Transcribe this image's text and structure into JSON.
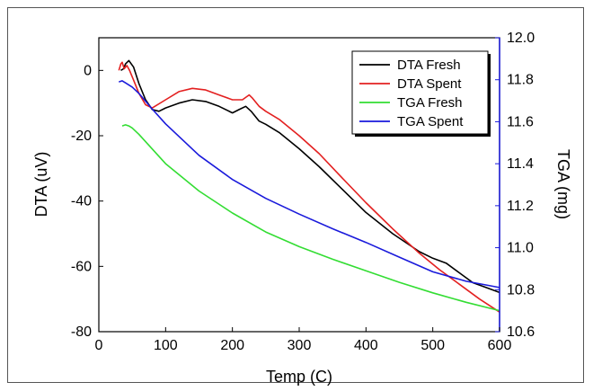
{
  "chart_data": {
    "type": "line",
    "xlabel": "Temp (C)",
    "ylabel_left": "DTA (uV)",
    "ylabel_right": "TGA (mg)",
    "xlim": [
      0,
      600
    ],
    "ylim_left": [
      -80,
      10
    ],
    "ylim_right": [
      10.6,
      12.0
    ],
    "x_ticks": [
      "0",
      "100",
      "200",
      "300",
      "400",
      "500",
      "600"
    ],
    "y_left_ticks": [
      "0",
      "-20",
      "-40",
      "-60",
      "-80"
    ],
    "y_right_ticks": [
      "12.0",
      "11.8",
      "11.6",
      "11.4",
      "11.2",
      "11.0",
      "10.8",
      "10.6"
    ],
    "legend_position": "top-right",
    "series": [
      {
        "name": "DTA Fresh",
        "axis": "left",
        "color": "#000000",
        "x": [
          33,
          37,
          40,
          45,
          52,
          60,
          70,
          80,
          90,
          100,
          120,
          140,
          160,
          180,
          200,
          210,
          220,
          228,
          240,
          250,
          270,
          300,
          330,
          360,
          400,
          440,
          480,
          500,
          520,
          540,
          560,
          580,
          600
        ],
        "y": [
          0,
          0.5,
          2,
          3,
          1,
          -4,
          -9,
          -12,
          -12.5,
          -11.5,
          -10,
          -9,
          -9.5,
          -11,
          -13,
          -12,
          -11,
          -12.5,
          -15.5,
          -16.5,
          -19,
          -24,
          -29.5,
          -35.5,
          -43.5,
          -50,
          -55.5,
          -57.5,
          -59,
          -62,
          -65,
          -66.5,
          -68
        ]
      },
      {
        "name": "DTA Spent",
        "axis": "left",
        "color": "#e32020",
        "x": [
          30,
          33,
          35,
          38,
          42,
          46,
          52,
          60,
          70,
          80,
          100,
          120,
          140,
          160,
          180,
          200,
          215,
          225,
          230,
          240,
          250,
          270,
          300,
          330,
          360,
          400,
          440,
          480,
          510,
          540,
          570,
          600
        ],
        "y": [
          0,
          2,
          2.5,
          0.5,
          1.5,
          0,
          -3,
          -7,
          -10.5,
          -11.5,
          -9,
          -6.5,
          -5.5,
          -6,
          -7.5,
          -9,
          -9,
          -7.5,
          -8.5,
          -11,
          -12.5,
          -15,
          -20,
          -25.5,
          -32,
          -40.5,
          -48.5,
          -56,
          -61,
          -65.5,
          -70,
          -74
        ]
      },
      {
        "name": "TGA Fresh",
        "axis": "right",
        "color": "#33dd33",
        "x": [
          35,
          40,
          45,
          50,
          60,
          80,
          100,
          150,
          200,
          250,
          300,
          350,
          400,
          450,
          500,
          550,
          600
        ],
        "y": [
          11.58,
          11.585,
          11.58,
          11.57,
          11.54,
          11.47,
          11.4,
          11.27,
          11.165,
          11.075,
          11.005,
          10.945,
          10.89,
          10.835,
          10.785,
          10.74,
          10.7
        ]
      },
      {
        "name": "TGA Spent",
        "axis": "right",
        "color": "#1a1adb",
        "x": [
          30,
          35,
          40,
          50,
          60,
          80,
          100,
          150,
          200,
          250,
          300,
          350,
          400,
          450,
          500,
          550,
          600
        ],
        "y": [
          11.79,
          11.795,
          11.785,
          11.765,
          11.735,
          11.66,
          11.59,
          11.44,
          11.325,
          11.235,
          11.16,
          11.09,
          11.025,
          10.955,
          10.885,
          10.84,
          10.81
        ]
      }
    ]
  }
}
